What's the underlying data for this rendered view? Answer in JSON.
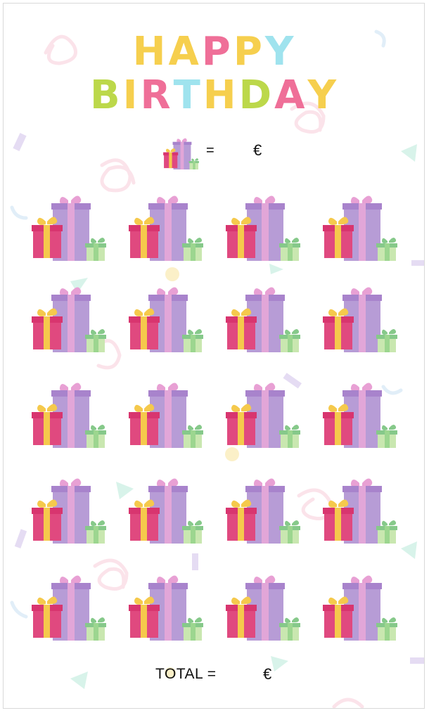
{
  "title": {
    "line1": [
      "H",
      "A",
      "P",
      "P",
      "Y"
    ],
    "line2": [
      "B",
      "I",
      "R",
      "T",
      "H",
      "D",
      "A",
      "Y"
    ],
    "line1_colors": [
      "#f6cf4e",
      "#f6cf4e",
      "#ef6f98",
      "#f6cf4e",
      "#9fe3ee"
    ],
    "line2_colors": [
      "#bcd84a",
      "#f6cf4e",
      "#ef6f98",
      "#9fe3ee",
      "#f6cf4e",
      "#bcd84a",
      "#ef6f98",
      "#f6cf4e"
    ]
  },
  "rate": {
    "equals": "=",
    "currency": "€",
    "icon": "gift-stack-icon"
  },
  "gifts": {
    "rows": 5,
    "cols": 4,
    "icon": "gift-stack-icon"
  },
  "total": {
    "label": "TOTAL =",
    "currency": "€"
  },
  "colors": {
    "big_box": "#b79cd6",
    "big_lid": "#a883cc",
    "big_ribbon": "#e2a6d8",
    "red_box": "#e0497f",
    "red_lid": "#d8356f",
    "red_ribbon": "#f5c94c",
    "green_box": "#c9e7b0",
    "green_lid": "#86c98a",
    "green_ribbon": "#9cd68f",
    "bow_pink": "#e8a0d4",
    "bow_yellow": "#f5c94c",
    "bow_green": "#86c98a"
  }
}
